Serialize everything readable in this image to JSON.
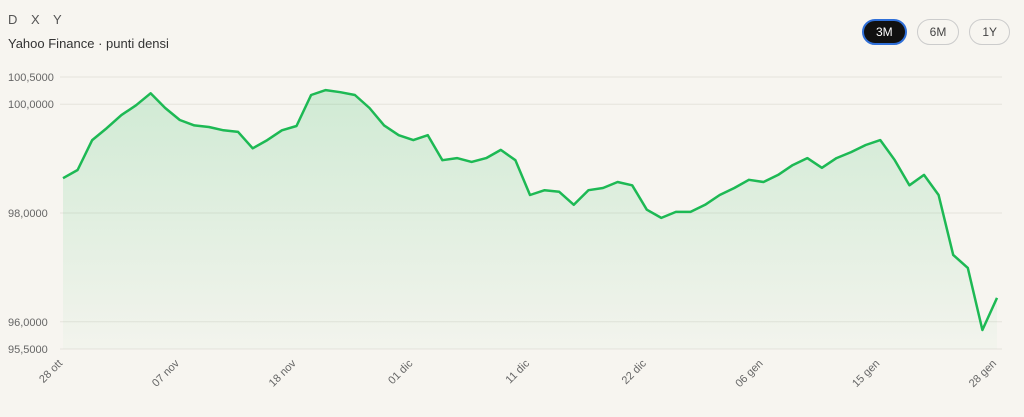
{
  "header": {
    "title": "D X Y",
    "subtitle": "Yahoo Finance · punti densi"
  },
  "controls": {
    "ranges": [
      "3M",
      "6M",
      "1Y"
    ],
    "active": 0
  },
  "chart_data": {
    "type": "line",
    "categories": [
      "28 ott",
      null,
      null,
      null,
      null,
      null,
      null,
      null,
      "07 nov",
      null,
      null,
      null,
      null,
      null,
      null,
      null,
      "18 nov",
      null,
      null,
      null,
      null,
      null,
      null,
      null,
      "01 dic",
      null,
      null,
      null,
      null,
      null,
      null,
      null,
      "11 dic",
      null,
      null,
      null,
      null,
      null,
      null,
      null,
      "22 dic",
      null,
      null,
      null,
      null,
      null,
      null,
      null,
      "06 gen",
      null,
      null,
      null,
      null,
      null,
      null,
      null,
      "15 gen",
      null,
      null,
      null,
      null,
      null,
      null,
      null,
      "28 gen"
    ],
    "series": [
      {
        "name": "DXY",
        "color": "#1db954",
        "values": [
          98.64,
          98.79,
          99.34,
          99.56,
          99.8,
          99.98,
          100.2,
          99.93,
          99.71,
          99.61,
          99.58,
          99.52,
          99.49,
          99.19,
          99.34,
          99.52,
          99.6,
          100.17,
          100.26,
          100.22,
          100.17,
          99.93,
          99.61,
          99.43,
          99.34,
          99.43,
          98.97,
          99.01,
          98.94,
          99.01,
          99.16,
          98.97,
          98.33,
          98.42,
          98.39,
          98.15,
          98.42,
          98.46,
          98.57,
          98.51,
          98.06,
          97.91,
          98.02,
          98.02,
          98.15,
          98.33,
          98.46,
          98.61,
          98.57,
          98.7,
          98.88,
          99.01,
          98.83,
          99.01,
          99.12,
          99.25,
          99.34,
          98.97,
          98.51,
          98.7,
          98.33,
          97.23,
          96.99,
          95.85,
          96.44
        ]
      }
    ],
    "ylim": [
      95.5,
      100.5
    ],
    "yticks": [
      {
        "value": 95.5,
        "label": "95,5000"
      },
      {
        "value": 96,
        "label": "96,0000"
      },
      {
        "value": 98,
        "label": "98,0000"
      },
      {
        "value": 100,
        "label": "100,0000"
      },
      {
        "value": 100.5,
        "label": "100,5000"
      }
    ],
    "grid": true
  }
}
